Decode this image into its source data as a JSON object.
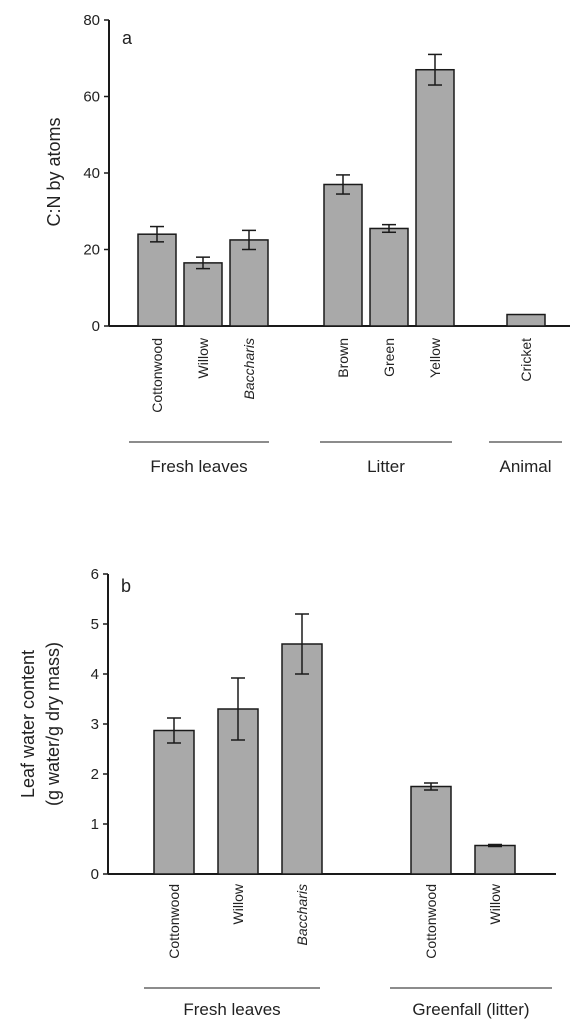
{
  "colors": {
    "bar": "#a9a9a9",
    "axis": "#1a1a1a",
    "text": "#222222"
  },
  "chart_data": [
    {
      "type": "bar",
      "panel": "a",
      "ylabel": "C:N by atoms",
      "ylim": [
        0,
        80
      ],
      "yticks": [
        "0",
        "20",
        "40",
        "60",
        "80"
      ],
      "categories": [
        "Cottonwood",
        "Willow",
        "Baccharis",
        "Brown",
        "Green",
        "Yellow",
        "Cricket"
      ],
      "italic_categories": [
        "Baccharis"
      ],
      "values": [
        24,
        16.5,
        22.5,
        37,
        25.5,
        67,
        3
      ],
      "error": [
        2,
        1.5,
        2.5,
        2.5,
        1,
        4,
        0
      ],
      "groups": [
        {
          "label": "Fresh leaves",
          "members": [
            0,
            1,
            2
          ]
        },
        {
          "label": "Litter",
          "members": [
            3,
            4,
            5
          ]
        },
        {
          "label": "Animal",
          "members": [
            6
          ]
        }
      ]
    },
    {
      "type": "bar",
      "panel": "b",
      "ylabel_lines": [
        "Leaf water content",
        "(g water/g dry mass)"
      ],
      "ylim": [
        0,
        6
      ],
      "yticks": [
        "0",
        "1",
        "2",
        "3",
        "4",
        "5",
        "6"
      ],
      "categories": [
        "Cottonwood",
        "Willow",
        "Baccharis",
        "Cottonwood",
        "Willow"
      ],
      "italic_categories": [
        "Baccharis"
      ],
      "values": [
        2.87,
        3.3,
        4.6,
        1.75,
        0.57
      ],
      "error": [
        0.25,
        0.62,
        0.6,
        0.07,
        0.02
      ],
      "groups": [
        {
          "label": "Fresh leaves",
          "members": [
            0,
            1,
            2
          ]
        },
        {
          "label": "Greenfall (litter)",
          "members": [
            3,
            4
          ]
        }
      ]
    }
  ]
}
